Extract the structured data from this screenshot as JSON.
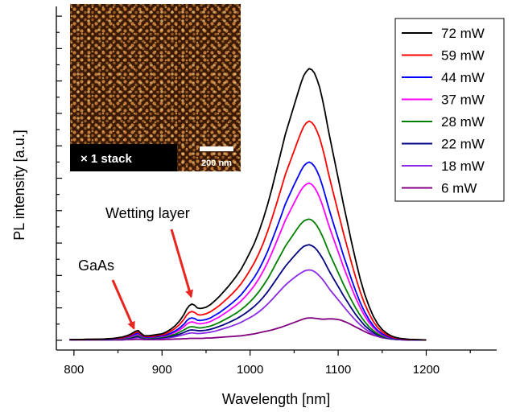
{
  "chart_data": {
    "type": "line",
    "xlabel": "Wavelength [nm]",
    "ylabel": "PL intensity [a.u.]",
    "xlim": [
      780,
      1280
    ],
    "ylim": [
      -0.3,
      10.3
    ],
    "x_ticks": [
      800,
      900,
      1000,
      1100,
      1200
    ],
    "x_tick_labels": [
      "800",
      "900",
      "1000",
      "1100",
      "1200"
    ],
    "y_tick_labels_shown": false,
    "grid": false,
    "legend_position": "top-right",
    "x": [
      795,
      805,
      815,
      825,
      835,
      845,
      855,
      860,
      865,
      870,
      873,
      876,
      880,
      885,
      890,
      895,
      900,
      905,
      910,
      915,
      920,
      925,
      928,
      931,
      934,
      937,
      940,
      943,
      946,
      950,
      955,
      960,
      965,
      970,
      975,
      980,
      985,
      990,
      995,
      1000,
      1005,
      1010,
      1015,
      1020,
      1025,
      1030,
      1035,
      1040,
      1045,
      1050,
      1055,
      1058,
      1061,
      1064,
      1067,
      1070,
      1073,
      1076,
      1079,
      1082,
      1085,
      1088,
      1091,
      1094,
      1097,
      1100,
      1103,
      1106,
      1110,
      1115,
      1120,
      1125,
      1130,
      1135,
      1140,
      1145,
      1150,
      1155,
      1160,
      1165,
      1170,
      1180,
      1190,
      1200
    ],
    "series": [
      {
        "name": "72 mW",
        "color": "#000000",
        "values": [
          0.02,
          0.02,
          0.03,
          0.03,
          0.04,
          0.06,
          0.1,
          0.14,
          0.2,
          0.28,
          0.3,
          0.22,
          0.14,
          0.14,
          0.16,
          0.18,
          0.2,
          0.26,
          0.34,
          0.45,
          0.6,
          0.8,
          0.96,
          1.07,
          1.12,
          1.08,
          1.0,
          0.98,
          0.99,
          1.02,
          1.1,
          1.22,
          1.35,
          1.5,
          1.65,
          1.82,
          2.0,
          2.2,
          2.45,
          2.72,
          3.0,
          3.35,
          3.75,
          4.2,
          4.7,
          5.25,
          5.8,
          6.35,
          6.8,
          7.25,
          7.7,
          7.95,
          8.17,
          8.3,
          8.38,
          8.35,
          8.25,
          8.05,
          7.8,
          7.45,
          7.05,
          6.6,
          6.2,
          5.8,
          5.4,
          5.0,
          4.6,
          4.2,
          3.7,
          3.05,
          2.45,
          1.9,
          1.43,
          1.05,
          0.74,
          0.5,
          0.33,
          0.22,
          0.14,
          0.09,
          0.06,
          0.03,
          0.02,
          0.01
        ]
      },
      {
        "name": "59 mW",
        "color": "#ff0000",
        "values": [
          0.02,
          0.02,
          0.03,
          0.03,
          0.04,
          0.05,
          0.08,
          0.12,
          0.17,
          0.24,
          0.26,
          0.19,
          0.12,
          0.12,
          0.13,
          0.15,
          0.17,
          0.21,
          0.28,
          0.37,
          0.49,
          0.65,
          0.78,
          0.86,
          0.89,
          0.86,
          0.8,
          0.78,
          0.79,
          0.82,
          0.88,
          0.97,
          1.07,
          1.19,
          1.31,
          1.44,
          1.59,
          1.75,
          1.95,
          2.17,
          2.4,
          2.68,
          3.0,
          3.37,
          3.77,
          4.21,
          4.66,
          5.11,
          5.48,
          5.85,
          6.22,
          6.42,
          6.6,
          6.71,
          6.76,
          6.72,
          6.62,
          6.45,
          6.24,
          5.95,
          5.63,
          5.26,
          4.93,
          4.6,
          4.28,
          3.95,
          3.63,
          3.31,
          2.91,
          2.4,
          1.93,
          1.5,
          1.13,
          0.83,
          0.58,
          0.39,
          0.26,
          0.17,
          0.11,
          0.07,
          0.05,
          0.02,
          0.02,
          0.01
        ]
      },
      {
        "name": "44 mW",
        "color": "#0000ff",
        "values": [
          0.02,
          0.02,
          0.02,
          0.03,
          0.03,
          0.04,
          0.07,
          0.1,
          0.14,
          0.2,
          0.22,
          0.16,
          0.1,
          0.1,
          0.11,
          0.12,
          0.14,
          0.17,
          0.22,
          0.29,
          0.38,
          0.5,
          0.6,
          0.67,
          0.69,
          0.67,
          0.62,
          0.61,
          0.62,
          0.64,
          0.69,
          0.77,
          0.85,
          0.95,
          1.05,
          1.16,
          1.28,
          1.41,
          1.58,
          1.76,
          1.95,
          2.18,
          2.45,
          2.75,
          3.09,
          3.45,
          3.82,
          4.2,
          4.5,
          4.8,
          5.08,
          5.24,
          5.38,
          5.46,
          5.5,
          5.46,
          5.37,
          5.22,
          5.03,
          4.78,
          4.5,
          4.2,
          3.93,
          3.66,
          3.4,
          3.14,
          2.88,
          2.62,
          2.3,
          1.89,
          1.51,
          1.17,
          0.88,
          0.64,
          0.45,
          0.3,
          0.2,
          0.13,
          0.08,
          0.05,
          0.04,
          0.02,
          0.01,
          0.01
        ]
      },
      {
        "name": "37 mW",
        "color": "#ff00ff",
        "values": [
          0.02,
          0.02,
          0.02,
          0.03,
          0.03,
          0.04,
          0.06,
          0.09,
          0.12,
          0.17,
          0.19,
          0.14,
          0.09,
          0.09,
          0.1,
          0.11,
          0.12,
          0.15,
          0.19,
          0.25,
          0.32,
          0.42,
          0.5,
          0.55,
          0.57,
          0.55,
          0.52,
          0.51,
          0.52,
          0.54,
          0.58,
          0.65,
          0.72,
          0.81,
          0.9,
          1.0,
          1.1,
          1.22,
          1.36,
          1.52,
          1.69,
          1.9,
          2.14,
          2.41,
          2.71,
          3.04,
          3.37,
          3.7,
          3.97,
          4.24,
          4.5,
          4.64,
          4.75,
          4.82,
          4.85,
          4.81,
          4.72,
          4.58,
          4.4,
          4.18,
          3.93,
          3.66,
          3.42,
          3.19,
          2.96,
          2.73,
          2.5,
          2.27,
          1.99,
          1.63,
          1.3,
          1.01,
          0.76,
          0.55,
          0.39,
          0.26,
          0.17,
          0.11,
          0.07,
          0.05,
          0.03,
          0.02,
          0.01,
          0.01
        ]
      },
      {
        "name": "28 mW",
        "color": "#008000",
        "values": [
          0.02,
          0.02,
          0.02,
          0.02,
          0.03,
          0.03,
          0.05,
          0.07,
          0.1,
          0.14,
          0.15,
          0.11,
          0.07,
          0.07,
          0.08,
          0.09,
          0.1,
          0.12,
          0.15,
          0.19,
          0.25,
          0.32,
          0.37,
          0.41,
          0.42,
          0.41,
          0.39,
          0.38,
          0.39,
          0.41,
          0.44,
          0.49,
          0.55,
          0.62,
          0.69,
          0.77,
          0.85,
          0.95,
          1.06,
          1.19,
          1.33,
          1.5,
          1.69,
          1.9,
          2.14,
          2.4,
          2.65,
          2.9,
          3.1,
          3.3,
          3.5,
          3.6,
          3.68,
          3.72,
          3.74,
          3.71,
          3.64,
          3.53,
          3.39,
          3.22,
          3.03,
          2.82,
          2.63,
          2.45,
          2.27,
          2.09,
          1.91,
          1.73,
          1.51,
          1.24,
          0.99,
          0.77,
          0.58,
          0.42,
          0.3,
          0.2,
          0.13,
          0.09,
          0.06,
          0.04,
          0.03,
          0.02,
          0.01,
          0.01
        ]
      },
      {
        "name": "22 mW",
        "color": "#000080",
        "values": [
          0.02,
          0.02,
          0.02,
          0.02,
          0.02,
          0.03,
          0.04,
          0.06,
          0.08,
          0.11,
          0.12,
          0.09,
          0.06,
          0.06,
          0.06,
          0.07,
          0.08,
          0.1,
          0.12,
          0.15,
          0.19,
          0.24,
          0.28,
          0.31,
          0.32,
          0.31,
          0.3,
          0.29,
          0.3,
          0.31,
          0.34,
          0.38,
          0.43,
          0.48,
          0.54,
          0.6,
          0.67,
          0.75,
          0.84,
          0.94,
          1.05,
          1.18,
          1.33,
          1.5,
          1.69,
          1.89,
          2.09,
          2.28,
          2.44,
          2.6,
          2.75,
          2.83,
          2.9,
          2.93,
          2.95,
          2.92,
          2.87,
          2.78,
          2.67,
          2.54,
          2.39,
          2.23,
          2.08,
          1.94,
          1.8,
          1.66,
          1.52,
          1.38,
          1.21,
          0.99,
          0.79,
          0.62,
          0.46,
          0.34,
          0.24,
          0.16,
          0.11,
          0.07,
          0.05,
          0.03,
          0.02,
          0.01,
          0.01,
          0.01
        ]
      },
      {
        "name": "18 mW",
        "color": "#8b2be2",
        "values": [
          0.01,
          0.02,
          0.02,
          0.02,
          0.02,
          0.02,
          0.03,
          0.04,
          0.06,
          0.08,
          0.09,
          0.07,
          0.05,
          0.05,
          0.05,
          0.05,
          0.06,
          0.07,
          0.09,
          0.11,
          0.14,
          0.18,
          0.2,
          0.22,
          0.23,
          0.22,
          0.21,
          0.21,
          0.22,
          0.23,
          0.25,
          0.28,
          0.32,
          0.36,
          0.4,
          0.45,
          0.5,
          0.56,
          0.63,
          0.7,
          0.78,
          0.88,
          0.99,
          1.12,
          1.26,
          1.41,
          1.56,
          1.7,
          1.82,
          1.93,
          2.03,
          2.08,
          2.13,
          2.16,
          2.17,
          2.16,
          2.12,
          2.06,
          1.98,
          1.89,
          1.78,
          1.66,
          1.55,
          1.45,
          1.35,
          1.25,
          1.15,
          1.05,
          0.92,
          0.76,
          0.61,
          0.48,
          0.36,
          0.27,
          0.19,
          0.13,
          0.09,
          0.06,
          0.04,
          0.03,
          0.02,
          0.01,
          0.01,
          0.01
        ]
      },
      {
        "name": "6 mW",
        "color": "#800080",
        "values": [
          0.01,
          0.01,
          0.01,
          0.01,
          0.01,
          0.01,
          0.01,
          0.02,
          0.02,
          0.03,
          0.03,
          0.03,
          0.02,
          0.02,
          0.02,
          0.02,
          0.02,
          0.03,
          0.03,
          0.04,
          0.04,
          0.05,
          0.05,
          0.06,
          0.06,
          0.06,
          0.06,
          0.06,
          0.06,
          0.07,
          0.07,
          0.08,
          0.09,
          0.1,
          0.11,
          0.12,
          0.13,
          0.14,
          0.16,
          0.18,
          0.2,
          0.23,
          0.26,
          0.29,
          0.32,
          0.36,
          0.4,
          0.45,
          0.5,
          0.55,
          0.6,
          0.63,
          0.66,
          0.68,
          0.69,
          0.69,
          0.68,
          0.67,
          0.66,
          0.65,
          0.65,
          0.66,
          0.66,
          0.66,
          0.65,
          0.64,
          0.62,
          0.59,
          0.55,
          0.48,
          0.41,
          0.34,
          0.27,
          0.21,
          0.16,
          0.12,
          0.08,
          0.06,
          0.04,
          0.03,
          0.02,
          0.01,
          0.01,
          0.01
        ]
      }
    ],
    "annotations": [
      {
        "text": "GaAs",
        "arrow_to": [
          868,
          0.22
        ]
      },
      {
        "text": "Wetting layer",
        "arrow_to": [
          933,
          1.15
        ]
      }
    ],
    "inset": {
      "label": "× 1 stack",
      "scale_bar_label": "200 nm"
    }
  }
}
